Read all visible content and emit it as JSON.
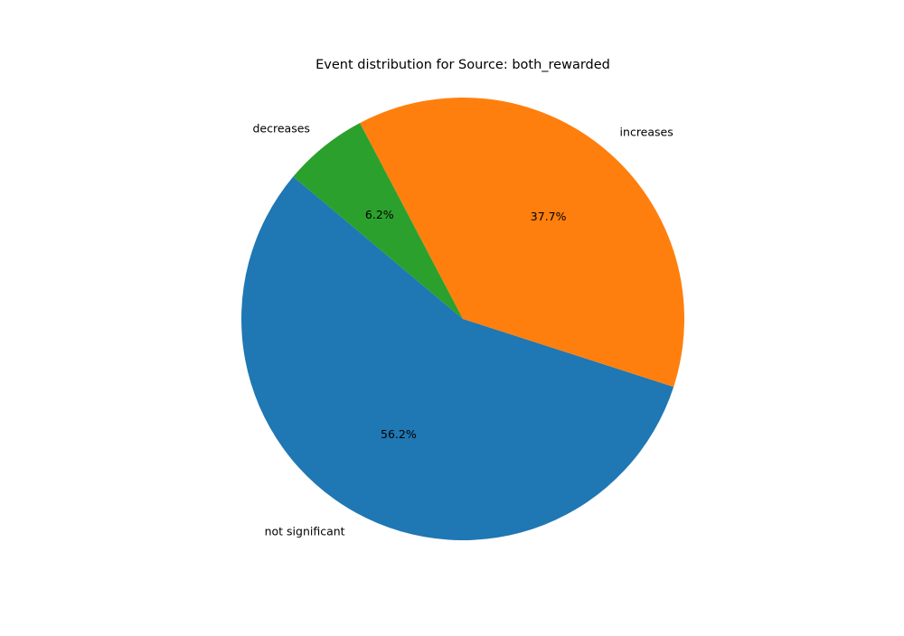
{
  "chart_data": {
    "type": "pie",
    "title": "Event distribution for Source: both_rewarded",
    "slices": [
      {
        "label": "not significant",
        "value": 56.2,
        "pct_label": "56.2%",
        "color": "#1f77b4"
      },
      {
        "label": "increases",
        "value": 37.7,
        "pct_label": "37.7%",
        "color": "#ff7f0e"
      },
      {
        "label": "decreases",
        "value": 6.2,
        "pct_label": "6.2%",
        "color": "#2ca02c"
      }
    ]
  }
}
